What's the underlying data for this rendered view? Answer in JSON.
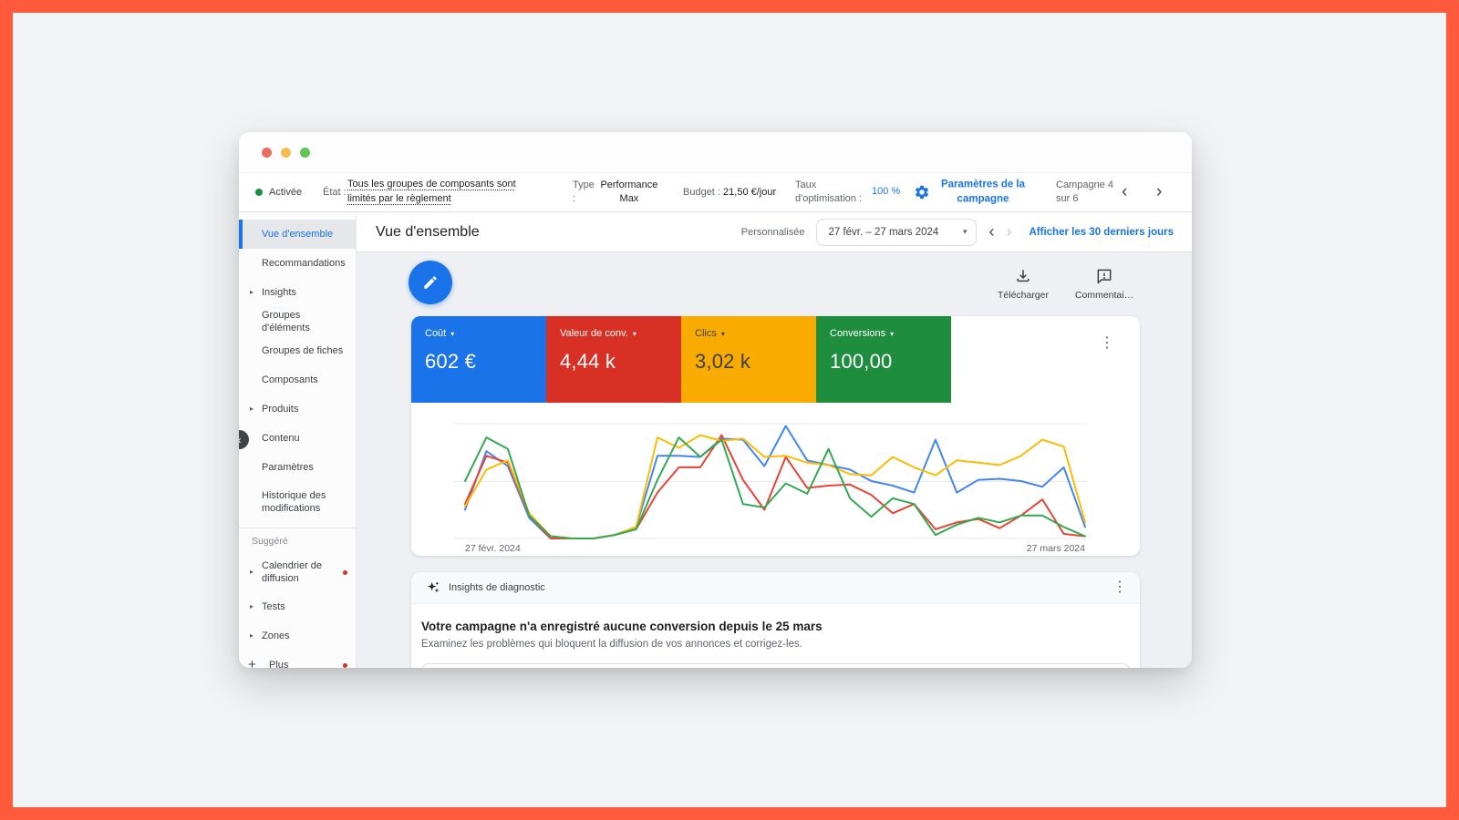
{
  "frame": {
    "border_color": "#FF5A3B",
    "page_bg": "#F2F3F5"
  },
  "window": {
    "traffic_lights": {
      "close": "#ED6A5E",
      "minimize": "#F4BF4F",
      "zoom": "#61C554"
    },
    "toolbar": {
      "status_label": "Activée",
      "etat_label": "État :",
      "etat_value": "Tous les groupes de composants sont limités par le règlement",
      "type_label": "Type :",
      "type_value": "Performance Max",
      "budget_label": "Budget :",
      "budget_value": "21,50 €/jour",
      "taux_label": "Taux d'optimisation :",
      "taux_value": "100 %",
      "settings_link": "Paramètres de la campagne",
      "pager_text": "Campagne 4 sur 6"
    }
  },
  "sidebar": {
    "items": [
      {
        "label": "Vue d'ensemble",
        "active": true
      },
      {
        "label": "Recommandations"
      },
      {
        "label": "Insights",
        "caret": true
      },
      {
        "label": "Groupes d'éléments"
      },
      {
        "label": "Groupes de fiches"
      },
      {
        "label": "Composants"
      },
      {
        "label": "Produits",
        "caret": true
      },
      {
        "label": "Contenu"
      },
      {
        "label": "Paramètres"
      },
      {
        "label": "Historique des modifications"
      }
    ],
    "section_label": "Suggéré",
    "suggested": [
      {
        "label": "Calendrier de diffusion",
        "caret": true,
        "dot": true
      },
      {
        "label": "Tests",
        "caret": true
      },
      {
        "label": "Zones",
        "caret": true
      }
    ],
    "plus_label": "Plus"
  },
  "header": {
    "title": "Vue d'ensemble",
    "range_mode": "Personnalisée",
    "date_range": "27 févr. – 27 mars 2024",
    "link_30days": "Afficher les 30 derniers jours"
  },
  "actions": {
    "download_label": "Télécharger",
    "comment_label": "Commentai…"
  },
  "metrics": [
    {
      "label": "Coût",
      "value": "602 €",
      "bg": "#1A73E8",
      "fg": "#ffffff"
    },
    {
      "label": "Valeur de conv.",
      "value": "4,44 k",
      "bg": "#D93025",
      "fg": "#ffffff"
    },
    {
      "label": "Clics",
      "value": "3,02 k",
      "bg": "#F9AB00",
      "fg": "#3c4043"
    },
    {
      "label": "Conversions",
      "value": "100,00",
      "bg": "#1E8E3E",
      "fg": "#ffffff"
    }
  ],
  "insights": {
    "header_label": "Insights de diagnostic",
    "title": "Votre campagne n'a enregistré aucune conversion depuis le 25 mars",
    "subtitle": "Examinez les problèmes qui bloquent la diffusion de vos annonces et corrigez-les."
  },
  "chart_data": {
    "type": "line",
    "title": "",
    "xlabel": "",
    "ylabel": "",
    "x_axis": {
      "start_label": "27 févr. 2024",
      "end_label": "27 mars 2024",
      "points": 30
    },
    "ylim": [
      0,
      100
    ],
    "grid": "horizontal",
    "legend": "none",
    "note": "values normalized 0-100 per metric, daily 27 Feb - 27 Mar 2024",
    "series": [
      {
        "name": "Coût",
        "color": "#4285F4",
        "values": [
          25,
          76,
          63,
          18,
          0,
          0,
          0,
          3,
          10,
          72,
          72,
          71,
          87,
          86,
          63,
          98,
          68,
          64,
          60,
          50,
          46,
          40,
          86,
          40,
          51,
          52,
          50,
          45,
          62,
          10
        ]
      },
      {
        "name": "Valeur de conv.",
        "color": "#EA4335",
        "values": [
          30,
          72,
          66,
          20,
          0,
          0,
          0,
          3,
          8,
          40,
          62,
          62,
          90,
          51,
          25,
          71,
          44,
          46,
          47,
          38,
          22,
          30,
          8,
          14,
          17,
          9,
          20,
          34,
          4,
          2
        ]
      },
      {
        "name": "Clics",
        "color": "#FBBC04",
        "values": [
          28,
          60,
          68,
          22,
          2,
          0,
          0,
          3,
          10,
          88,
          79,
          90,
          85,
          87,
          71,
          72,
          66,
          64,
          56,
          55,
          71,
          62,
          55,
          68,
          66,
          64,
          72,
          86,
          80,
          14
        ]
      },
      {
        "name": "Conversions",
        "color": "#34A853",
        "values": [
          50,
          88,
          78,
          20,
          2,
          0,
          0,
          3,
          8,
          51,
          88,
          71,
          86,
          30,
          27,
          48,
          39,
          78,
          35,
          19,
          35,
          30,
          3,
          12,
          18,
          14,
          20,
          20,
          10,
          2
        ]
      }
    ]
  },
  "icons": {
    "caret_right": "▸",
    "kebab": "⋮",
    "chevron_left": "‹",
    "chevron_right": "›",
    "dropdown_caret": "▾",
    "plus": "+"
  }
}
